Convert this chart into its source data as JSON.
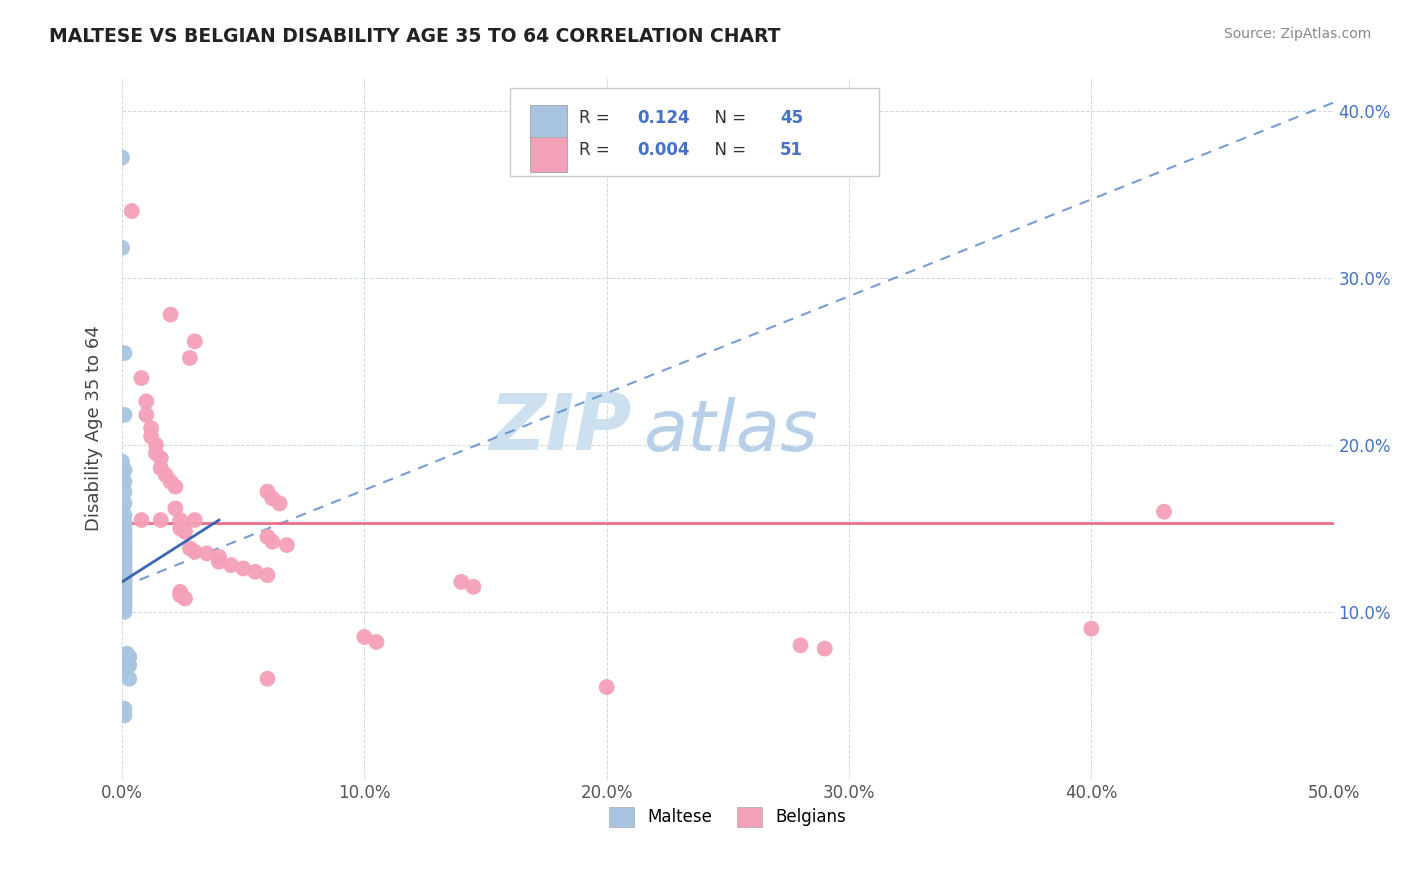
{
  "title": "MALTESE VS BELGIAN DISABILITY AGE 35 TO 64 CORRELATION CHART",
  "source": "Source: ZipAtlas.com",
  "ylabel": "Disability Age 35 to 64",
  "xlim": [
    0.0,
    0.5
  ],
  "ylim": [
    0.0,
    0.42
  ],
  "xticks": [
    0.0,
    0.1,
    0.2,
    0.3,
    0.4,
    0.5
  ],
  "yticks": [
    0.0,
    0.1,
    0.2,
    0.3,
    0.4
  ],
  "ytick_labels_right": [
    "",
    "10.0%",
    "20.0%",
    "30.0%",
    "40.0%"
  ],
  "xtick_labels": [
    "0.0%",
    "10.0%",
    "20.0%",
    "30.0%",
    "40.0%",
    "50.0%"
  ],
  "maltese_color": "#a8c4e0",
  "belgian_color": "#f4a0b8",
  "maltese_R": 0.124,
  "maltese_N": 45,
  "belgian_R": 0.004,
  "belgian_N": 51,
  "legend_R_color": "#4472c4",
  "watermark_zip": "ZIP",
  "watermark_atlas": "atlas",
  "watermark_color": "#cce0f0",
  "watermark_atlas_color": "#b8cfe8",
  "trendline_maltese_color": "#5585c8",
  "trendline_belgian_color": "#e8607a",
  "maltese_points": [
    [
      0.0,
      0.372
    ],
    [
      0.0,
      0.318
    ],
    [
      0.001,
      0.255
    ],
    [
      0.001,
      0.218
    ],
    [
      0.0,
      0.19
    ],
    [
      0.001,
      0.185
    ],
    [
      0.001,
      0.178
    ],
    [
      0.001,
      0.172
    ],
    [
      0.001,
      0.165
    ],
    [
      0.001,
      0.158
    ],
    [
      0.001,
      0.154
    ],
    [
      0.001,
      0.15
    ],
    [
      0.001,
      0.148
    ],
    [
      0.001,
      0.145
    ],
    [
      0.001,
      0.143
    ],
    [
      0.001,
      0.14
    ],
    [
      0.001,
      0.138
    ],
    [
      0.001,
      0.136
    ],
    [
      0.001,
      0.134
    ],
    [
      0.001,
      0.132
    ],
    [
      0.001,
      0.13
    ],
    [
      0.001,
      0.128
    ],
    [
      0.001,
      0.126
    ],
    [
      0.001,
      0.124
    ],
    [
      0.001,
      0.122
    ],
    [
      0.001,
      0.12
    ],
    [
      0.001,
      0.118
    ],
    [
      0.001,
      0.116
    ],
    [
      0.001,
      0.114
    ],
    [
      0.001,
      0.112
    ],
    [
      0.001,
      0.11
    ],
    [
      0.001,
      0.108
    ],
    [
      0.001,
      0.106
    ],
    [
      0.001,
      0.104
    ],
    [
      0.001,
      0.102
    ],
    [
      0.001,
      0.1
    ],
    [
      0.001,
      0.065
    ],
    [
      0.002,
      0.07
    ],
    [
      0.002,
      0.075
    ],
    [
      0.002,
      0.068
    ],
    [
      0.003,
      0.073
    ],
    [
      0.003,
      0.068
    ],
    [
      0.003,
      0.06
    ],
    [
      0.001,
      0.042
    ],
    [
      0.001,
      0.038
    ]
  ],
  "belgian_points": [
    [
      0.004,
      0.34
    ],
    [
      0.02,
      0.278
    ],
    [
      0.03,
      0.262
    ],
    [
      0.028,
      0.252
    ],
    [
      0.008,
      0.24
    ],
    [
      0.01,
      0.226
    ],
    [
      0.01,
      0.218
    ],
    [
      0.012,
      0.21
    ],
    [
      0.012,
      0.205
    ],
    [
      0.014,
      0.2
    ],
    [
      0.014,
      0.195
    ],
    [
      0.016,
      0.192
    ],
    [
      0.016,
      0.186
    ],
    [
      0.018,
      0.182
    ],
    [
      0.02,
      0.178
    ],
    [
      0.022,
      0.175
    ],
    [
      0.06,
      0.172
    ],
    [
      0.062,
      0.168
    ],
    [
      0.065,
      0.165
    ],
    [
      0.022,
      0.162
    ],
    [
      0.024,
      0.155
    ],
    [
      0.024,
      0.15
    ],
    [
      0.026,
      0.148
    ],
    [
      0.06,
      0.145
    ],
    [
      0.062,
      0.142
    ],
    [
      0.068,
      0.14
    ],
    [
      0.028,
      0.138
    ],
    [
      0.03,
      0.136
    ],
    [
      0.035,
      0.135
    ],
    [
      0.04,
      0.133
    ],
    [
      0.04,
      0.13
    ],
    [
      0.045,
      0.128
    ],
    [
      0.05,
      0.126
    ],
    [
      0.055,
      0.124
    ],
    [
      0.06,
      0.122
    ],
    [
      0.14,
      0.118
    ],
    [
      0.145,
      0.115
    ],
    [
      0.024,
      0.112
    ],
    [
      0.024,
      0.11
    ],
    [
      0.026,
      0.108
    ],
    [
      0.1,
      0.085
    ],
    [
      0.105,
      0.082
    ],
    [
      0.28,
      0.08
    ],
    [
      0.29,
      0.078
    ],
    [
      0.4,
      0.09
    ],
    [
      0.43,
      0.16
    ],
    [
      0.06,
      0.06
    ],
    [
      0.2,
      0.055
    ],
    [
      0.03,
      0.155
    ],
    [
      0.008,
      0.155
    ],
    [
      0.016,
      0.155
    ]
  ]
}
